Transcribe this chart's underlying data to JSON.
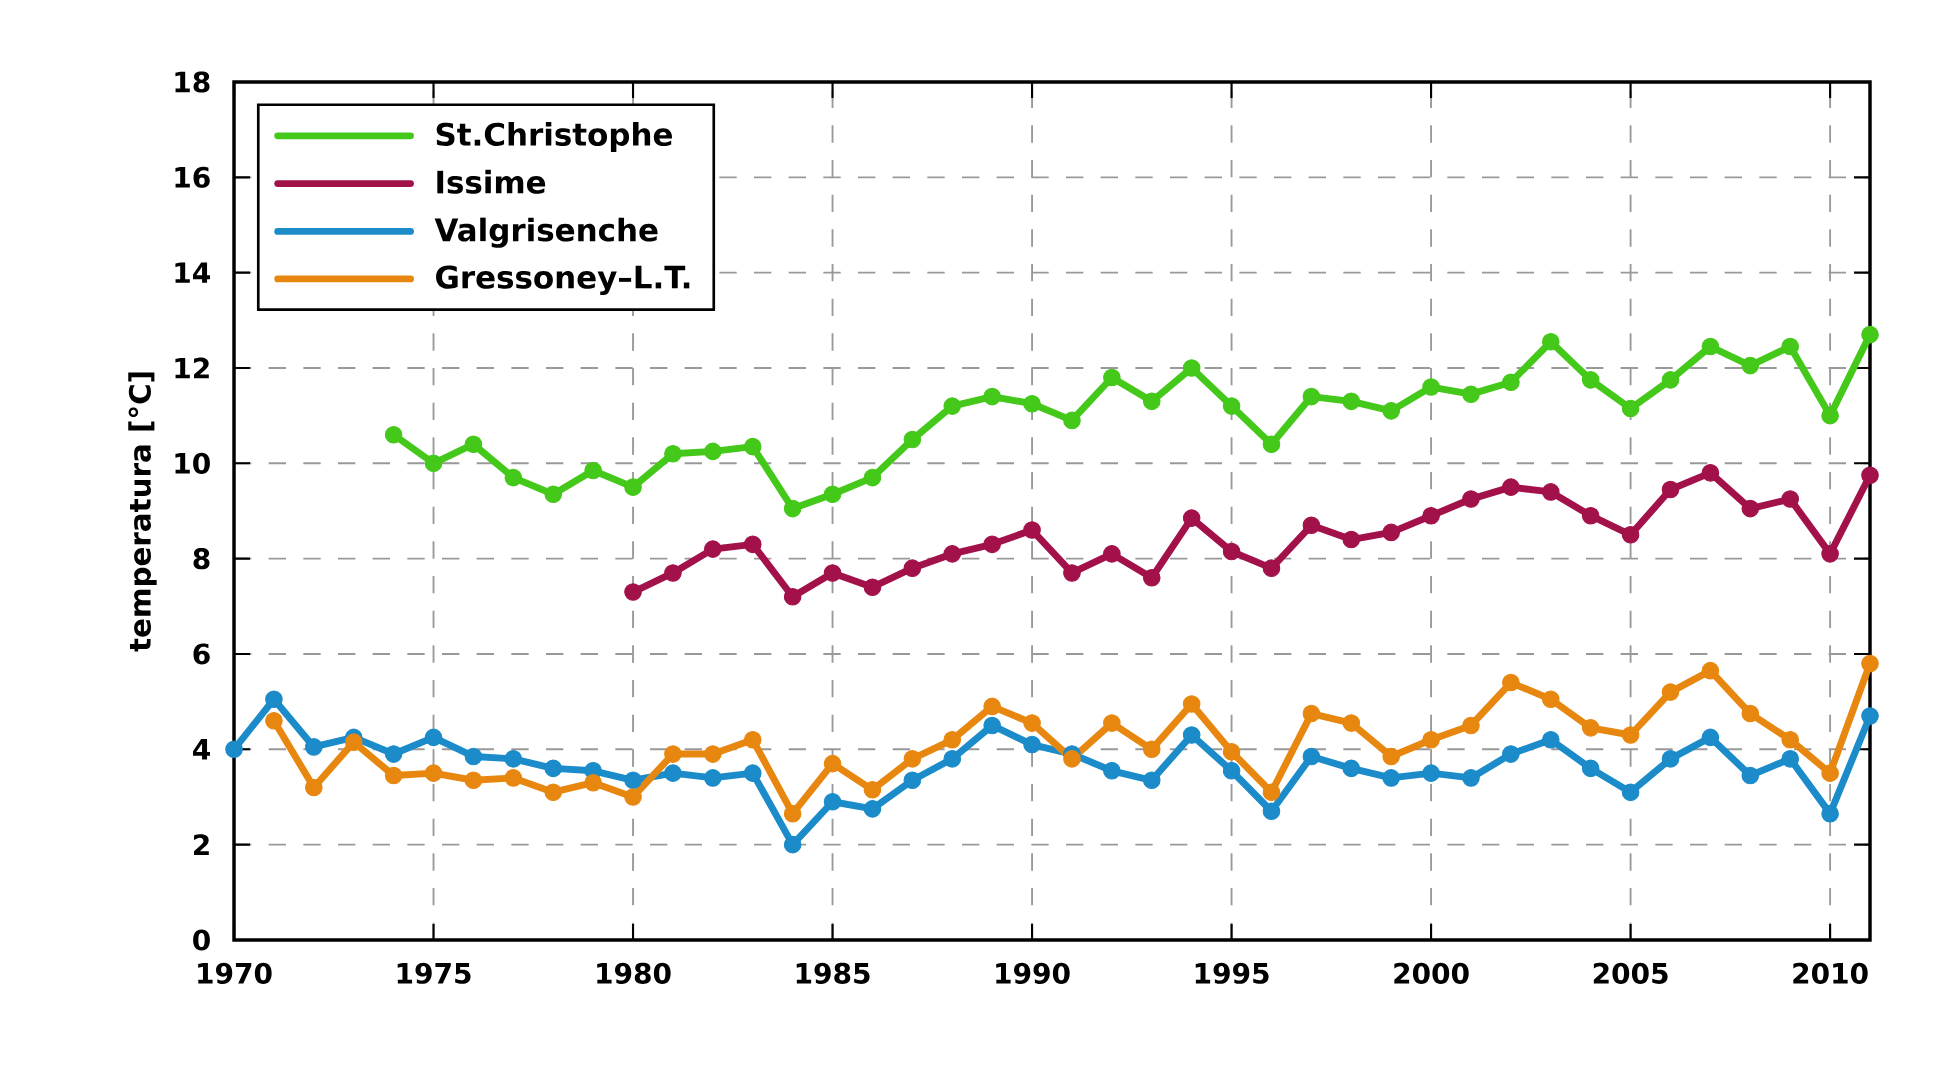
{
  "chart_data": {
    "type": "line",
    "ylabel": "temperatura [°C]",
    "x": [
      1970,
      1971,
      1972,
      1973,
      1974,
      1975,
      1976,
      1977,
      1978,
      1979,
      1980,
      1981,
      1982,
      1983,
      1984,
      1985,
      1986,
      1987,
      1988,
      1989,
      1990,
      1991,
      1992,
      1993,
      1994,
      1995,
      1996,
      1997,
      1998,
      1999,
      2000,
      2001,
      2002,
      2003,
      2004,
      2005,
      2006,
      2007,
      2008,
      2009,
      2010,
      2011
    ],
    "series": [
      {
        "name": "St.Christophe",
        "color": "#44c81a",
        "values": [
          null,
          null,
          null,
          null,
          10.6,
          10.0,
          10.4,
          9.7,
          9.35,
          9.85,
          9.5,
          10.2,
          10.25,
          10.35,
          9.05,
          9.35,
          9.7,
          10.5,
          11.2,
          11.4,
          11.25,
          10.9,
          11.8,
          11.3,
          12.0,
          11.2,
          10.4,
          11.4,
          11.3,
          11.1,
          11.6,
          11.45,
          11.7,
          12.55,
          11.75,
          11.15,
          11.75,
          12.45,
          12.05,
          12.45,
          11.0,
          12.7
        ]
      },
      {
        "name": "Issime",
        "color": "#a3114a",
        "values": [
          null,
          null,
          null,
          null,
          null,
          null,
          null,
          null,
          null,
          null,
          7.3,
          7.7,
          8.2,
          8.3,
          7.2,
          7.7,
          7.4,
          7.8,
          8.1,
          8.3,
          8.6,
          7.7,
          8.1,
          7.6,
          8.85,
          8.15,
          7.8,
          8.7,
          8.4,
          8.55,
          8.9,
          9.25,
          9.5,
          9.4,
          8.9,
          8.5,
          9.45,
          9.8,
          9.05,
          9.25,
          8.1,
          9.75
        ]
      },
      {
        "name": "Valgrisenche",
        "color": "#1b8bc9",
        "values": [
          4.0,
          5.05,
          4.05,
          4.25,
          3.9,
          4.25,
          3.85,
          3.8,
          3.6,
          3.55,
          3.35,
          3.5,
          3.4,
          3.5,
          2.0,
          2.9,
          2.75,
          3.35,
          3.8,
          4.5,
          4.1,
          3.9,
          3.55,
          3.35,
          4.3,
          3.55,
          2.7,
          3.85,
          3.6,
          3.4,
          3.5,
          3.4,
          3.9,
          4.2,
          3.6,
          3.1,
          3.8,
          4.25,
          3.45,
          3.8,
          2.65,
          4.7
        ]
      },
      {
        "name": "Gressoney–L.T.",
        "color": "#e8870f",
        "values": [
          null,
          4.6,
          3.2,
          4.15,
          3.45,
          3.5,
          3.35,
          3.4,
          3.1,
          3.3,
          3.0,
          3.9,
          3.9,
          4.2,
          2.65,
          3.7,
          3.15,
          3.8,
          4.2,
          4.9,
          4.55,
          3.8,
          4.55,
          4.0,
          4.95,
          3.95,
          3.1,
          4.75,
          4.55,
          3.85,
          4.2,
          4.5,
          5.4,
          5.05,
          4.45,
          4.3,
          5.2,
          5.65,
          4.75,
          4.2,
          3.5,
          5.8
        ]
      }
    ],
    "xlim": [
      1970,
      2011
    ],
    "ylim": [
      0,
      18
    ],
    "xticks": [
      1970,
      1975,
      1980,
      1985,
      1990,
      1995,
      2000,
      2005,
      2010
    ],
    "yticks": [
      0,
      2,
      4,
      6,
      8,
      10,
      12,
      14,
      16,
      18
    ],
    "grid": true,
    "legend": "top left",
    "marker": "circle",
    "line_style": "solid"
  }
}
